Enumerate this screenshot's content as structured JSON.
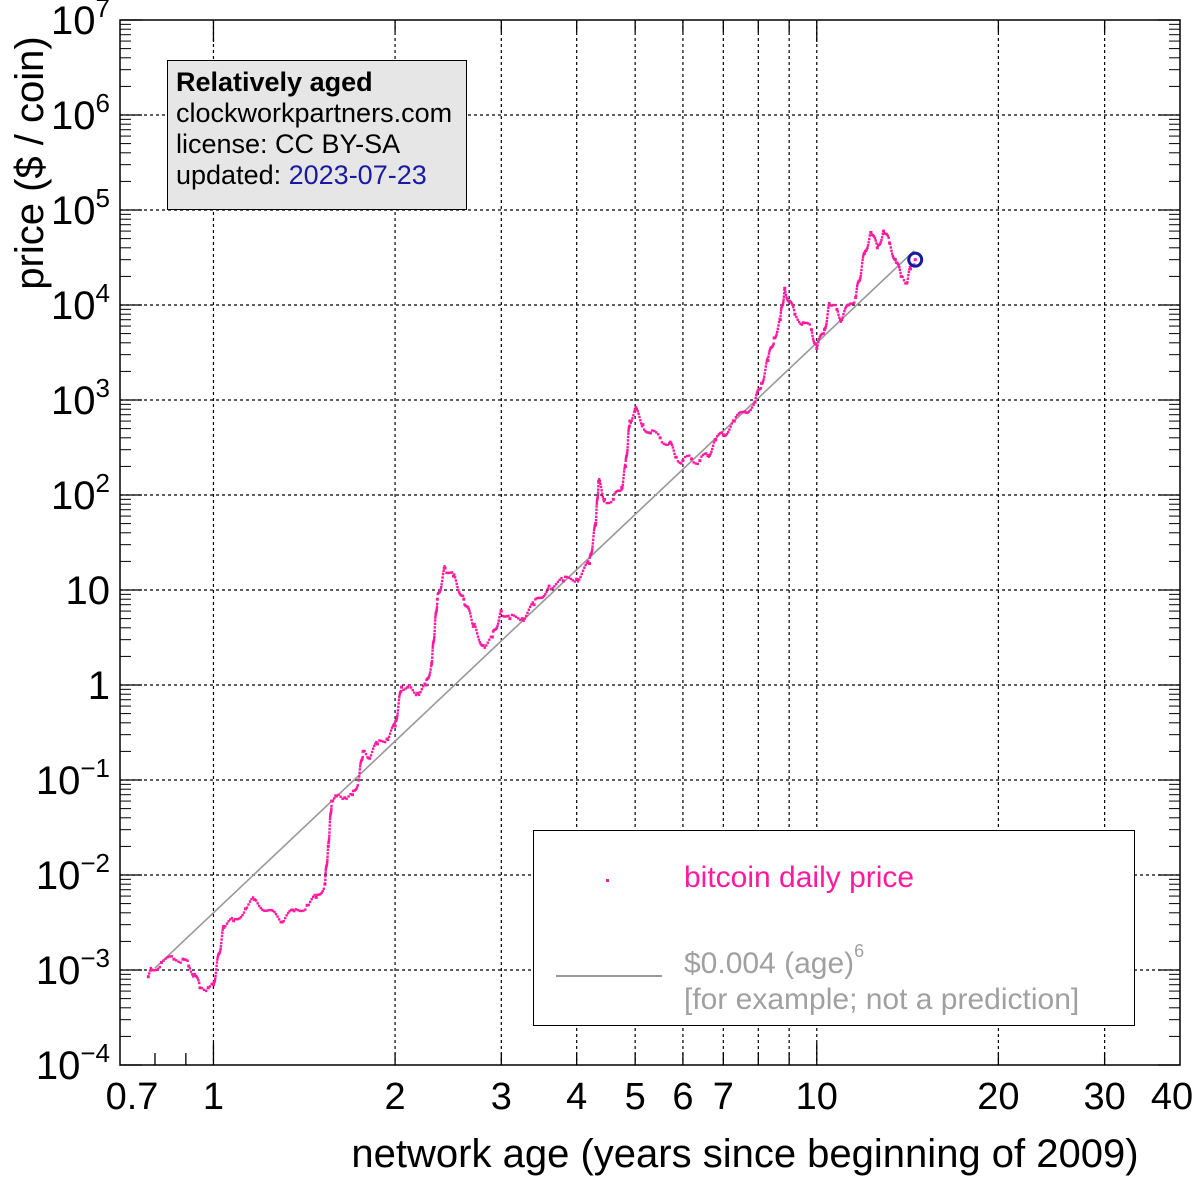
{
  "chart_data": {
    "type": "scatter",
    "xlabel": "network age (years since beginning of 2009)",
    "ylabel": "price ($ / coin)",
    "xscale": "log",
    "yscale": "log",
    "xlim": [
      0.7,
      40
    ],
    "ylim": [
      0.0001,
      10000000
    ],
    "grid": true,
    "x_ticks": [
      {
        "value": 0.7,
        "label": "0.7"
      },
      {
        "value": 1,
        "label": "1"
      },
      {
        "value": 2,
        "label": "2"
      },
      {
        "value": 3,
        "label": "3"
      },
      {
        "value": 4,
        "label": "4"
      },
      {
        "value": 5,
        "label": "5"
      },
      {
        "value": 6,
        "label": "6"
      },
      {
        "value": 7,
        "label": "7"
      },
      {
        "value": 10,
        "label": "10"
      },
      {
        "value": 20,
        "label": "20"
      },
      {
        "value": 30,
        "label": "30"
      },
      {
        "value": 40,
        "label": "40"
      }
    ],
    "y_ticks": [
      {
        "value": 0.0001,
        "label": "10",
        "exp": "−4"
      },
      {
        "value": 0.001,
        "label": "10",
        "exp": "−3"
      },
      {
        "value": 0.01,
        "label": "10",
        "exp": "−2"
      },
      {
        "value": 0.1,
        "label": "10",
        "exp": "−1"
      },
      {
        "value": 1,
        "label": "1",
        "exp": ""
      },
      {
        "value": 10,
        "label": "10",
        "exp": ""
      },
      {
        "value": 100,
        "label": "10",
        "exp": "2"
      },
      {
        "value": 1000,
        "label": "10",
        "exp": "3"
      },
      {
        "value": 10000,
        "label": "10",
        "exp": "4"
      },
      {
        "value": 100000,
        "label": "10",
        "exp": "5"
      },
      {
        "value": 1000000,
        "label": "10",
        "exp": "6"
      },
      {
        "value": 10000000,
        "label": "10",
        "exp": "7"
      }
    ],
    "series": [
      {
        "name": "bitcoin daily price",
        "color": "#ff1aa0",
        "points": [
          [
            0.78,
            0.00085
          ],
          [
            0.79,
            0.001
          ],
          [
            0.82,
            0.0012
          ],
          [
            0.86,
            0.0013
          ],
          [
            0.89,
            0.0013
          ],
          [
            0.91,
            0.0011
          ],
          [
            0.93,
            0.0009
          ],
          [
            0.95,
            0.00065
          ],
          [
            0.98,
            0.00065
          ],
          [
            1.0,
            0.0007
          ],
          [
            1.04,
            0.0028
          ],
          [
            1.08,
            0.0033
          ],
          [
            1.13,
            0.0044
          ],
          [
            1.17,
            0.0055
          ],
          [
            1.3,
            0.0032
          ],
          [
            1.36,
            0.0042
          ],
          [
            1.43,
            0.0048
          ],
          [
            1.48,
            0.0058
          ],
          [
            1.53,
            0.008
          ],
          [
            1.55,
            0.02
          ],
          [
            1.57,
            0.06
          ],
          [
            1.6,
            0.068
          ],
          [
            1.65,
            0.065
          ],
          [
            1.7,
            0.07
          ],
          [
            1.74,
            0.1
          ],
          [
            1.77,
            0.2
          ],
          [
            1.81,
            0.17
          ],
          [
            1.87,
            0.24
          ],
          [
            1.94,
            0.27
          ],
          [
            2.0,
            0.37
          ],
          [
            2.05,
            0.95
          ],
          [
            2.1,
            0.95
          ],
          [
            2.18,
            0.82
          ],
          [
            2.25,
            1.0
          ],
          [
            2.3,
            1.7
          ],
          [
            2.35,
            8.0
          ],
          [
            2.42,
            17.0
          ],
          [
            2.5,
            14.0
          ],
          [
            2.6,
            8.0
          ],
          [
            2.7,
            4.2
          ],
          [
            2.8,
            2.6
          ],
          [
            2.9,
            3.2
          ],
          [
            3.0,
            6.0
          ],
          [
            3.1,
            5.0
          ],
          [
            3.25,
            5.0
          ],
          [
            3.4,
            7.0
          ],
          [
            3.6,
            11.0
          ],
          [
            3.8,
            12.5
          ],
          [
            4.0,
            13.0
          ],
          [
            4.2,
            19.0
          ],
          [
            4.3,
            50.0
          ],
          [
            4.35,
            140.0
          ],
          [
            4.45,
            90.0
          ],
          [
            4.6,
            90.0
          ],
          [
            4.75,
            120.0
          ],
          [
            4.82,
            200.0
          ],
          [
            4.9,
            600.0
          ],
          [
            5.0,
            800.0
          ],
          [
            5.15,
            550.0
          ],
          [
            5.3,
            450.0
          ],
          [
            5.5,
            400.0
          ],
          [
            5.7,
            350.0
          ],
          [
            5.85,
            250.0
          ],
          [
            6.0,
            230.0
          ],
          [
            6.2,
            240.0
          ],
          [
            6.4,
            230.0
          ],
          [
            6.6,
            260.0
          ],
          [
            6.8,
            380.0
          ],
          [
            7.0,
            430.0
          ],
          [
            7.3,
            600.0
          ],
          [
            7.6,
            750.0
          ],
          [
            7.9,
            950.0
          ],
          [
            8.1,
            1500.0
          ],
          [
            8.3,
            2600.0
          ],
          [
            8.5,
            4500.0
          ],
          [
            8.7,
            7000.0
          ],
          [
            8.85,
            15000.0
          ],
          [
            9.0,
            11000.0
          ],
          [
            9.2,
            8000.0
          ],
          [
            9.5,
            6500.0
          ],
          [
            9.8,
            5500.0
          ],
          [
            10.0,
            3500.0
          ],
          [
            10.3,
            5500.0
          ],
          [
            10.5,
            10000.0
          ],
          [
            10.8,
            9000.0
          ],
          [
            11.0,
            7000.0
          ],
          [
            11.3,
            10000.0
          ],
          [
            11.6,
            12000.0
          ],
          [
            12.0,
            35000.0
          ],
          [
            12.3,
            58000.0
          ],
          [
            12.6,
            40000.0
          ],
          [
            12.9,
            60000.0
          ],
          [
            13.2,
            45000.0
          ],
          [
            13.5,
            30000.0
          ],
          [
            13.8,
            20000.0
          ],
          [
            14.1,
            17000.0
          ],
          [
            14.3,
            24000.0
          ],
          [
            14.56,
            30000.0
          ]
        ]
      },
      {
        "name": "$0.004 (age)",
        "color": "#999999",
        "formula": "0.004 * age^6",
        "x": [
          0.8,
          14.5
        ]
      }
    ],
    "latest_marker": {
      "x": 14.56,
      "y": 30000,
      "color": "#1a1aa0"
    }
  },
  "info_box": {
    "title": "Relatively aged",
    "site": "clockworkpartners.com",
    "license": "license: CC BY-SA",
    "updated_label": "updated:",
    "updated_date": "2023-07-23"
  },
  "legend": {
    "item1": "bitcoin daily price",
    "item2_text": "$0.004 (age)",
    "item2_exp": "6",
    "item2_note": "[for example; not a prediction]"
  }
}
